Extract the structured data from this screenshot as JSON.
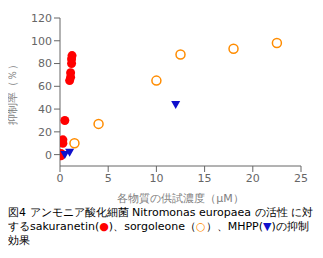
{
  "chart_data": {
    "type": "scatter",
    "title": "図4 アンモニア酸化細菌 Nitromonas europaea の活性 に対するsakuranetin(●)、sorgoleone（○）、MHPP(▼)の抑制効果",
    "xlabel": "各物質の供試濃度（μM）",
    "ylabel": "抑制率（％）",
    "xlim": [
      0,
      25
    ],
    "ylim": [
      -10,
      120
    ],
    "xticks": [
      0,
      5,
      10,
      15,
      20,
      25
    ],
    "yticks": [
      0,
      20,
      40,
      60,
      80,
      100,
      120
    ],
    "grid": false,
    "series": [
      {
        "name": "sakuranetin",
        "color": "#FF0000",
        "marker": "circle",
        "x": [
          0.1,
          0.1,
          0.3,
          0.3,
          0.5,
          1.0,
          1.1,
          1.1,
          1.2,
          1.2,
          1.25
        ],
        "values": [
          -1,
          1,
          10,
          13,
          30,
          65,
          68,
          72,
          80,
          84,
          87
        ]
      },
      {
        "name": "sorgoleone",
        "color": "#FF8C00",
        "marker": "open_circle",
        "x": [
          1.5,
          4.0,
          10.0,
          12.5,
          18.0,
          22.5
        ],
        "values": [
          10,
          27,
          65,
          88,
          93,
          98
        ]
      },
      {
        "name": "MHPP",
        "color": "#1010CC",
        "marker": "triangle_down",
        "x": [
          0.5,
          1.0,
          12.0
        ],
        "values": [
          0,
          2,
          44
        ]
      }
    ]
  }
}
